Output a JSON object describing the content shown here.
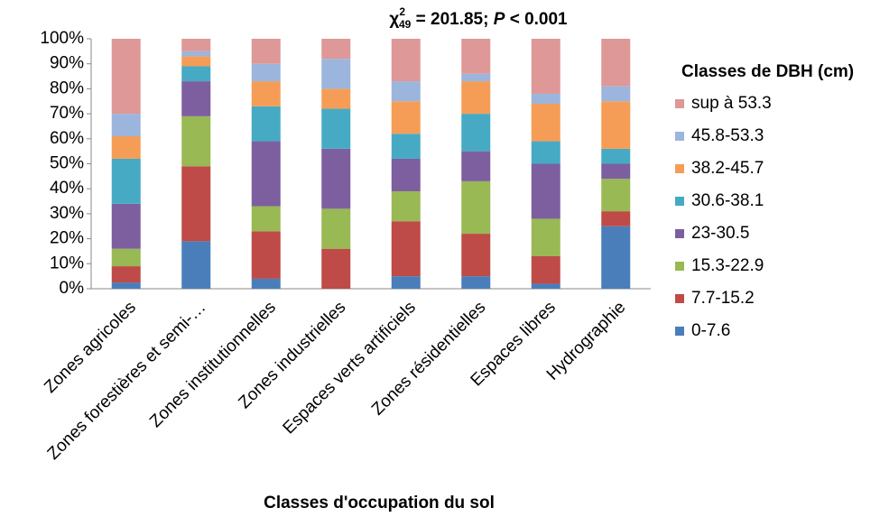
{
  "chart_data": {
    "type": "stacked_bar_100",
    "title_parts": [
      "χ",
      "2",
      "49",
      " = 201.85; ",
      "P",
      " < 0.001"
    ],
    "x_label": "Classes d'occupation du sol",
    "legend_title": "Classes de DBH (cm)",
    "categories": [
      "Zones agricoles",
      "Zones forestières et semi-…",
      "Zones institutionnelles",
      "Zones industrielles",
      "Espaces verts artificiels",
      "Zones résidentielles",
      "Espaces libres",
      "Hydrographie"
    ],
    "series": [
      {
        "name": "0-7.6",
        "color": "#4a7ebb",
        "values": [
          2.5,
          19,
          4,
          0,
          5,
          5,
          2,
          25
        ]
      },
      {
        "name": "7.7-15.2",
        "color": "#be4b48",
        "values": [
          6.5,
          30,
          19,
          16,
          22,
          17,
          11,
          6
        ]
      },
      {
        "name": "15.3-22.9",
        "color": "#98b954",
        "values": [
          7,
          20,
          10,
          16,
          12,
          21,
          15,
          13
        ]
      },
      {
        "name": "23-30.5",
        "color": "#7d5fa0",
        "values": [
          18,
          14,
          26,
          24,
          13,
          12,
          22,
          6
        ]
      },
      {
        "name": "30.6-38.1",
        "color": "#46aac5",
        "values": [
          18,
          6,
          14,
          16,
          10,
          15,
          9,
          6
        ]
      },
      {
        "name": "38.2-45.7",
        "color": "#f59d56",
        "values": [
          9,
          4,
          10,
          8,
          13,
          13,
          15,
          19
        ]
      },
      {
        "name": "45.8-53.3",
        "color": "#9cb5dd",
        "values": [
          9,
          2,
          7,
          12,
          8,
          3,
          4,
          6
        ]
      },
      {
        "name": "sup à 53.3",
        "color": "#dd9897",
        "values": [
          30,
          5,
          10,
          8,
          17,
          14,
          22,
          19
        ]
      }
    ],
    "ylim": [
      0,
      100
    ],
    "yticks": [
      {
        "value": 0,
        "label": "0%"
      },
      {
        "value": 10,
        "label": "10%"
      },
      {
        "value": 20,
        "label": "20%"
      },
      {
        "value": 30,
        "label": "30%"
      },
      {
        "value": 40,
        "label": "40%"
      },
      {
        "value": 50,
        "label": "50%"
      },
      {
        "value": 60,
        "label": "60%"
      },
      {
        "value": 70,
        "label": "70%"
      },
      {
        "value": 80,
        "label": "80%"
      },
      {
        "value": 90,
        "label": "90%"
      },
      {
        "value": 100,
        "label": "100%"
      }
    ]
  }
}
